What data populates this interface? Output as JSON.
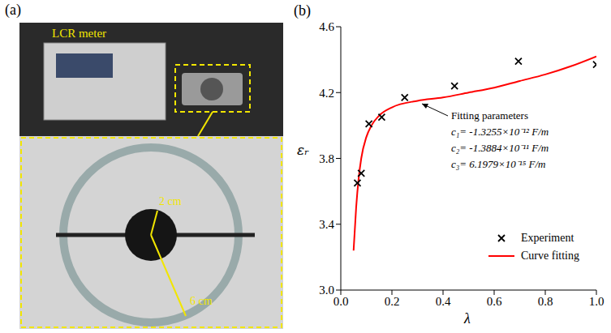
{
  "panel_a": {
    "letter": "(a)",
    "device": "LCR meter",
    "inner_size": "2 cm",
    "outer_size": "6 cm"
  },
  "chart_data": {
    "letter": "(b)",
    "type": "scatter",
    "x_label": "λ",
    "y_label": "εᵣ",
    "xlim": [
      0,
      1.0
    ],
    "xticks": [
      {
        "value": 0,
        "label": "0.0"
      },
      0.2,
      0.4,
      0.6,
      0.8,
      {
        "value": 1.0,
        "label": "1.0"
      }
    ],
    "ylim": [
      3.0,
      4.6
    ],
    "yticks": [
      {
        "value": 3.0,
        "label": "3.0"
      },
      3.4,
      3.8,
      4.2,
      4.6
    ],
    "grid": false,
    "legend": "lower right",
    "annotation": {
      "title": "Fitting parameters",
      "lines": [
        "c₁= -1.3255×10⁻¹² F/m",
        "c₂= -1.3884×10⁻¹¹ F/m",
        "c₃=  6.1979×10⁻¹⁵ F/m"
      ]
    },
    "series": [
      {
        "name": "Experiment",
        "type": "scatter",
        "marker": "x",
        "color": "#000000",
        "x": [
          0.065,
          0.08,
          0.11,
          0.16,
          0.25,
          0.445,
          0.695,
          1.0
        ],
        "values": [
          3.65,
          3.71,
          4.01,
          4.05,
          4.17,
          4.24,
          4.39,
          4.37
        ]
      },
      {
        "name": "Curve fitting",
        "type": "line",
        "line_style": "solid",
        "color": "#ff0000",
        "x": [
          0.05,
          0.06,
          0.07,
          0.08,
          0.1,
          0.12,
          0.15,
          0.2,
          0.3,
          0.4,
          0.5,
          0.6,
          0.7,
          0.8,
          0.9,
          1.0
        ],
        "values": [
          3.24,
          3.5,
          3.68,
          3.8,
          3.93,
          4.0,
          4.06,
          4.11,
          4.15,
          4.17,
          4.2,
          4.23,
          4.27,
          4.31,
          4.36,
          4.42
        ]
      }
    ]
  }
}
